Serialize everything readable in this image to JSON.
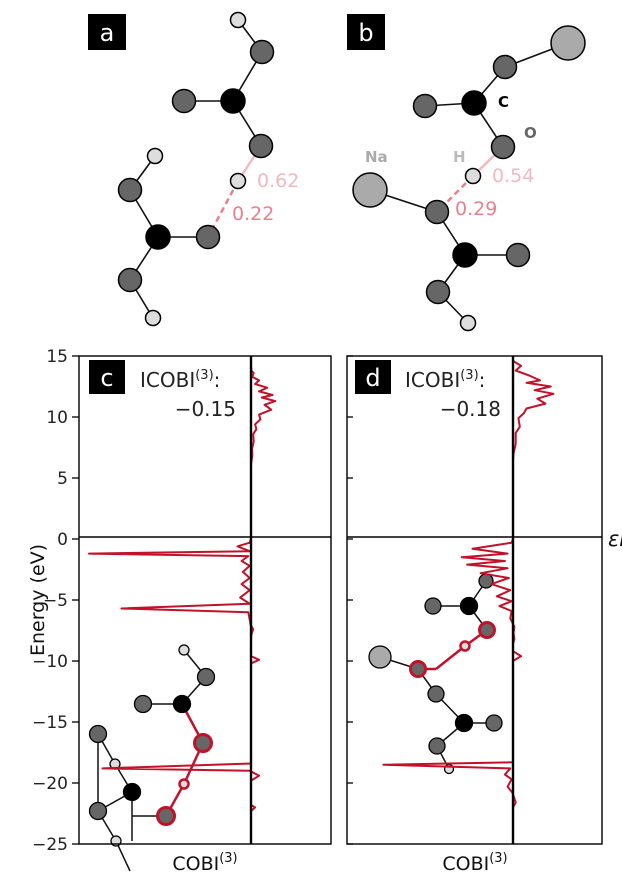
{
  "colors": {
    "curve": "#c0122a",
    "bond_light": "#f2b8c0",
    "bond_medium": "#e8808e",
    "carbon": "#000000",
    "oxygen": "#666666",
    "hydrogen": "#dddddd",
    "sodium": "#aaaaaa",
    "label_bg": "#000000"
  },
  "panels": {
    "a": {
      "label": "a",
      "bond_values": [
        "0.62",
        "0.22"
      ]
    },
    "b": {
      "label": "b",
      "atom_labels": {
        "C": "C",
        "O": "O",
        "Na": "Na",
        "H": "H"
      },
      "bond_values": [
        "0.54",
        "0.29"
      ]
    }
  },
  "chart_data": [
    {
      "type": "line",
      "panel": "c",
      "label": "c",
      "ylabel": "Energy (eV)",
      "xlabel": "COBI",
      "xlabel_superscript": "(3)",
      "ylim": [
        -25,
        15
      ],
      "yticks": [
        15,
        10,
        5,
        0,
        -5,
        -10,
        -15,
        -20,
        -25
      ],
      "fermi_level": 0,
      "fermi_label": "εF",
      "annotation": {
        "name": "ICOBI",
        "superscript": "(3)",
        "suffix": ":",
        "value": "−0.15"
      },
      "points": [
        [
          0,
          15
        ],
        [
          0,
          14.2
        ],
        [
          0.02,
          13.8
        ],
        [
          0.1,
          13.6
        ],
        [
          0.04,
          13.3
        ],
        [
          0.3,
          13.0
        ],
        [
          0.15,
          12.7
        ],
        [
          0.6,
          12.4
        ],
        [
          0.3,
          12.1
        ],
        [
          0.8,
          11.8
        ],
        [
          0.4,
          11.6
        ],
        [
          0.9,
          11.3
        ],
        [
          0.5,
          11.0
        ],
        [
          0.75,
          10.6
        ],
        [
          0.3,
          10.2
        ],
        [
          0.35,
          9.8
        ],
        [
          0.15,
          9.4
        ],
        [
          0.2,
          9.0
        ],
        [
          0.08,
          8.6
        ],
        [
          0.1,
          8.0
        ],
        [
          0.04,
          7.4
        ],
        [
          0.05,
          6.8
        ],
        [
          0.01,
          6.3
        ],
        [
          0,
          6.0
        ],
        [
          0,
          0.2
        ],
        [
          0,
          0
        ],
        [
          -0.05,
          -0.3
        ],
        [
          -0.5,
          -0.6
        ],
        [
          -0.05,
          -1.0
        ],
        [
          -6.0,
          -1.2
        ],
        [
          -0.1,
          -1.4
        ],
        [
          -0.35,
          -1.8
        ],
        [
          -0.05,
          -2.2
        ],
        [
          -0.3,
          -2.7
        ],
        [
          -0.05,
          -3.2
        ],
        [
          -0.35,
          -3.7
        ],
        [
          -0.05,
          -4.2
        ],
        [
          -0.4,
          -4.8
        ],
        [
          -0.05,
          -5.3
        ],
        [
          -4.8,
          -5.7
        ],
        [
          -0.1,
          -6.0
        ],
        [
          -0.05,
          -6.6
        ],
        [
          -0.02,
          -7.0
        ],
        [
          0.08,
          -7.4
        ],
        [
          0.02,
          -7.8
        ],
        [
          0,
          -8.2
        ],
        [
          0,
          -9.6
        ],
        [
          0.3,
          -9.9
        ],
        [
          0,
          -10.2
        ],
        [
          0,
          -18.4
        ],
        [
          -5.5,
          -18.8
        ],
        [
          -0.05,
          -19.0
        ],
        [
          0.3,
          -19.4
        ],
        [
          0,
          -19.8
        ],
        [
          0,
          -21.8
        ],
        [
          0.15,
          -22.0
        ],
        [
          0,
          -22.3
        ],
        [
          0,
          -25
        ]
      ]
    },
    {
      "type": "line",
      "panel": "d",
      "label": "d",
      "xlabel": "COBI",
      "xlabel_superscript": "(3)",
      "ylim": [
        -25,
        15
      ],
      "fermi_level": 0,
      "fermi_label": "εF",
      "annotation": {
        "name": "ICOBI",
        "superscript": "(3)",
        "suffix": ":",
        "value": "−0.18"
      },
      "points": [
        [
          0,
          15
        ],
        [
          0,
          14.6
        ],
        [
          0.3,
          14.2
        ],
        [
          0.1,
          13.8
        ],
        [
          0.6,
          13.4
        ],
        [
          1.0,
          13.0
        ],
        [
          0.5,
          12.8
        ],
        [
          1.4,
          12.5
        ],
        [
          0.8,
          12.2
        ],
        [
          1.5,
          11.9
        ],
        [
          0.9,
          11.5
        ],
        [
          1.2,
          11.1
        ],
        [
          0.5,
          10.7
        ],
        [
          0.4,
          10.3
        ],
        [
          0.2,
          9.9
        ],
        [
          0.25,
          9.2
        ],
        [
          0.1,
          8.7
        ],
        [
          0.1,
          7.8
        ],
        [
          0.02,
          7.0
        ],
        [
          0,
          6.4
        ],
        [
          0,
          0.2
        ],
        [
          0,
          0
        ],
        [
          -0.05,
          -0.3
        ],
        [
          -1.5,
          -0.8
        ],
        [
          -0.2,
          -1.2
        ],
        [
          -1.9,
          -1.5
        ],
        [
          -0.3,
          -1.8
        ],
        [
          -1.7,
          -2.1
        ],
        [
          -0.2,
          -2.4
        ],
        [
          -1.2,
          -2.8
        ],
        [
          -0.15,
          -3.2
        ],
        [
          -0.8,
          -3.7
        ],
        [
          -0.1,
          -4.2
        ],
        [
          -0.6,
          -4.7
        ],
        [
          -0.05,
          -5.1
        ],
        [
          -0.5,
          -5.5
        ],
        [
          -0.05,
          -5.9
        ],
        [
          -0.1,
          -6.5
        ],
        [
          0.05,
          -7.2
        ],
        [
          0.02,
          -7.7
        ],
        [
          0.05,
          -8.2
        ],
        [
          0,
          -8.6
        ],
        [
          0,
          -9.2
        ],
        [
          0.3,
          -9.6
        ],
        [
          0,
          -10.0
        ],
        [
          0,
          -18.3
        ],
        [
          -4.8,
          -18.5
        ],
        [
          -0.1,
          -18.8
        ],
        [
          -0.3,
          -19.3
        ],
        [
          -0.05,
          -19.7
        ],
        [
          -0.2,
          -20.3
        ],
        [
          -0.02,
          -20.8
        ],
        [
          0.1,
          -21.6
        ],
        [
          0,
          -22.0
        ],
        [
          0,
          -25
        ]
      ]
    }
  ]
}
